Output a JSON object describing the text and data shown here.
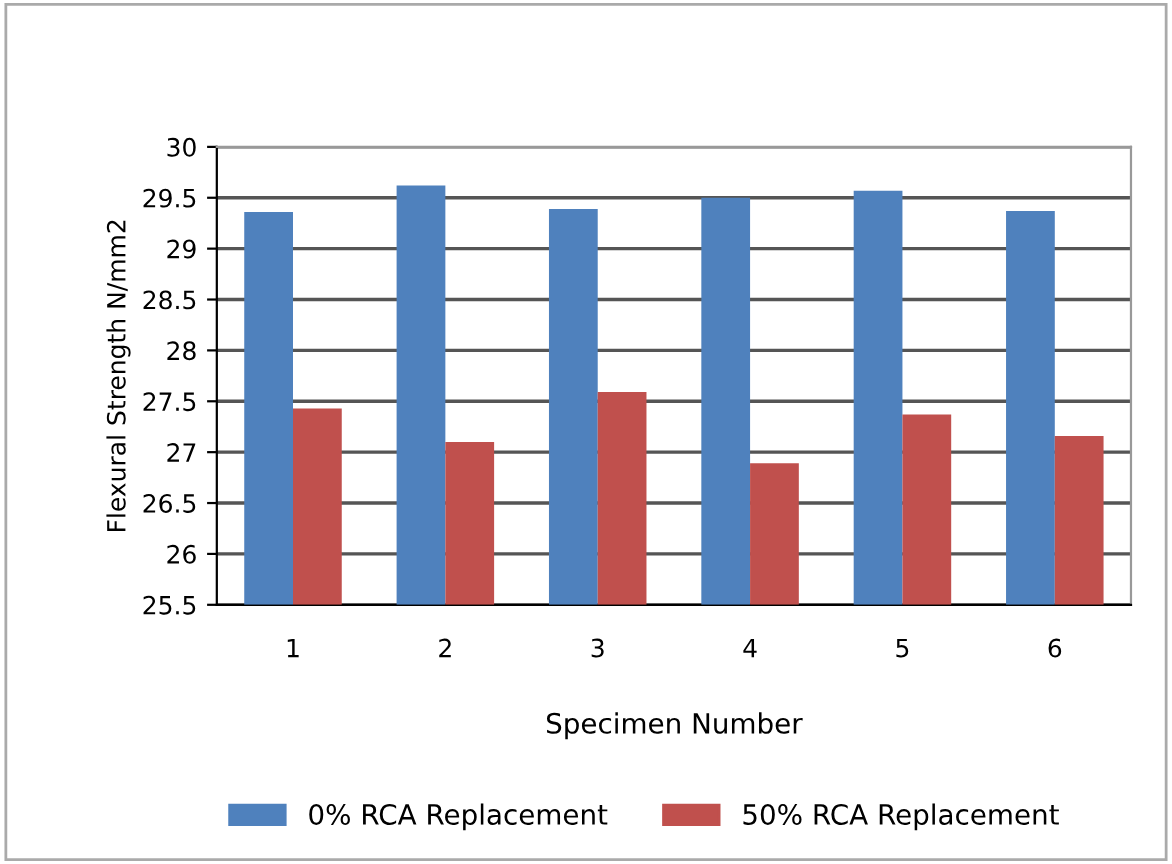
{
  "chart_data": {
    "type": "bar",
    "xlabel": "Specimen Number",
    "ylabel": "Flexural Strength N/mm2",
    "categories": [
      "1",
      "2",
      "3",
      "4",
      "5",
      "6"
    ],
    "series": [
      {
        "name": "0% RCA Replacement",
        "color": "#4f81bd",
        "values": [
          29.36,
          29.62,
          29.39,
          29.5,
          29.57,
          29.37
        ]
      },
      {
        "name": "50% RCA Replacement",
        "color": "#c0504d",
        "values": [
          27.43,
          27.1,
          27.59,
          26.89,
          27.37,
          27.16
        ]
      }
    ],
    "ylim": [
      25.5,
      30
    ],
    "yticks": [
      25.5,
      26,
      26.5,
      27,
      27.5,
      28,
      28.5,
      29,
      29.5,
      30
    ],
    "grid": "y",
    "legend": "bottom"
  }
}
